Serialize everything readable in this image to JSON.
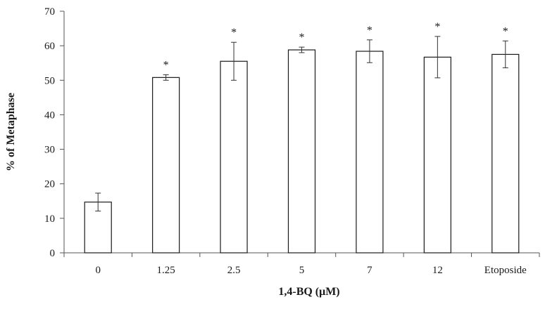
{
  "chart_data": {
    "type": "bar",
    "xlabel": "1,4-BQ (μM)",
    "ylabel": "% of Metaphase",
    "ylim": [
      0,
      70
    ],
    "yticks": [
      0,
      10,
      20,
      30,
      40,
      50,
      60,
      70
    ],
    "grid": false,
    "categories": [
      "0",
      "1.25",
      "2.5",
      "5",
      "7",
      "12",
      "Etoposide"
    ],
    "values": [
      14.7,
      50.8,
      55.5,
      58.8,
      58.4,
      56.7,
      57.5
    ],
    "errors": [
      2.6,
      0.8,
      5.5,
      0.8,
      3.3,
      6.0,
      3.9
    ],
    "annotations": [
      "",
      "*",
      "*",
      "*",
      "*",
      "*",
      "*"
    ],
    "colors": {
      "bar_fill": "#ffffff",
      "bar_stroke": "#1a1a1a",
      "axis": "#555555"
    }
  }
}
